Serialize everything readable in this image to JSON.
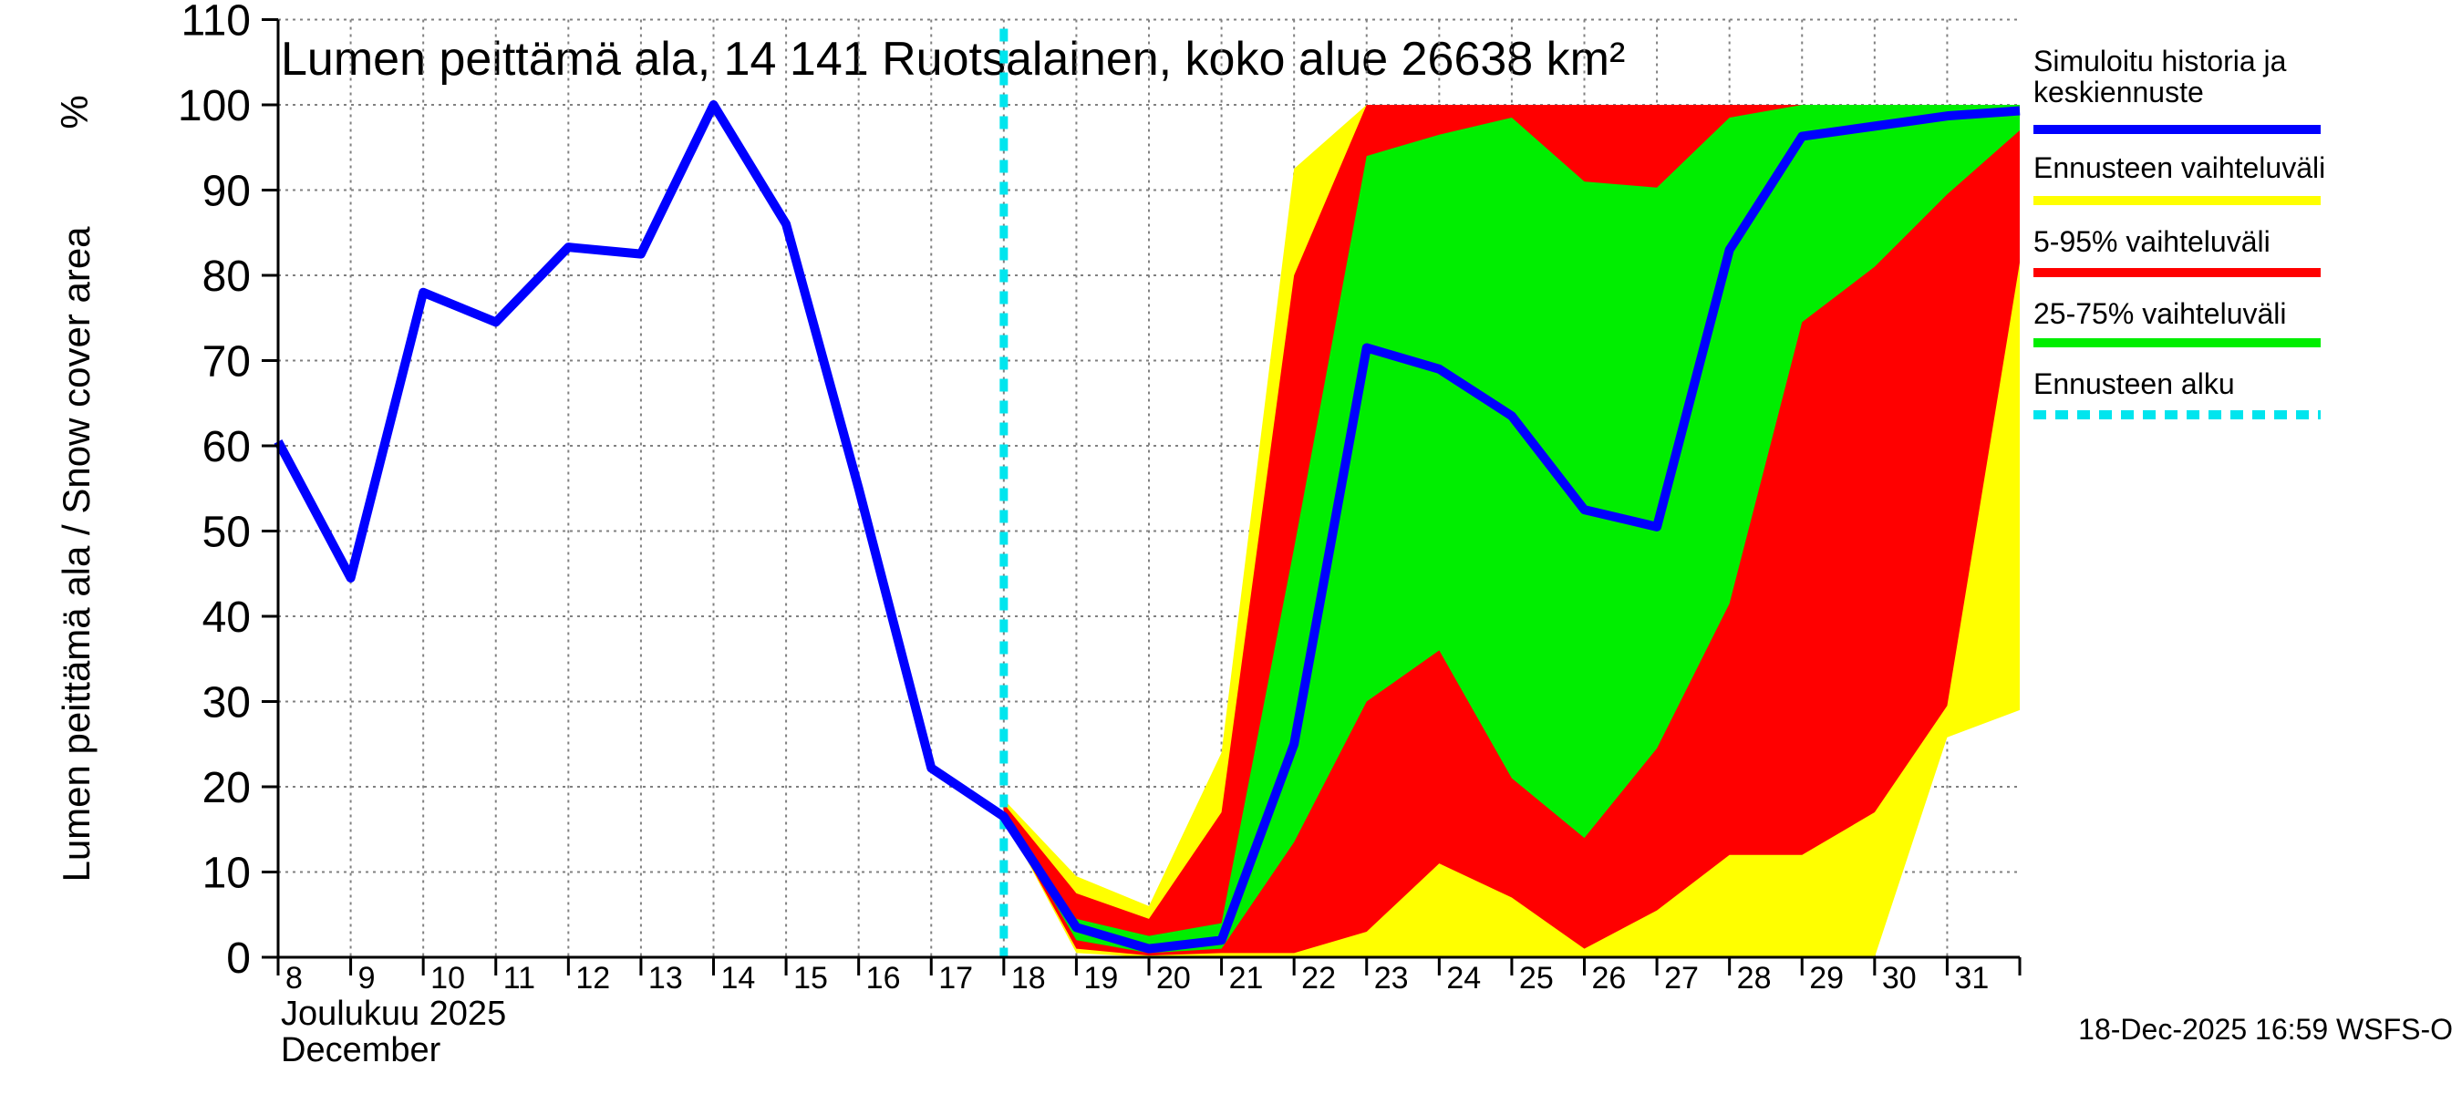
{
  "chart_data": {
    "type": "area",
    "title": "Lumen peittämä ala, 14 141 Ruotsalainen, koko alue 26638 km²",
    "ylabel": "Lumen peittämä ala / Snow cover area",
    "yunit": "%",
    "ylim": [
      0,
      110
    ],
    "yticks": [
      0,
      10,
      20,
      30,
      40,
      50,
      60,
      70,
      80,
      90,
      100,
      110
    ],
    "xlim": [
      8,
      32
    ],
    "x_day_labels": [
      "8",
      "9",
      "10",
      "11",
      "12",
      "13",
      "14",
      "15",
      "16",
      "17",
      "18",
      "19",
      "20",
      "21",
      "22",
      "23",
      "24",
      "25",
      "26",
      "27",
      "28",
      "29",
      "30",
      "31"
    ],
    "xlabel_month_fi": "Joulukuu  2025",
    "xlabel_month_en": "December",
    "grid": true,
    "forecast_start": 18,
    "timestamp": "18-Dec-2025 16:59 WSFS-O",
    "series": [
      {
        "name": "Simuloitu historia ja keskiennuste",
        "kind": "line",
        "color": "#0000ff",
        "x": [
          8,
          9,
          10,
          11,
          12,
          13,
          14,
          15,
          16,
          17,
          18,
          19,
          20,
          21,
          22,
          23,
          24,
          25,
          26,
          27,
          28,
          29,
          30,
          31,
          32
        ],
        "values": [
          60.5,
          44.5,
          78,
          74.5,
          83.3,
          82.5,
          100,
          86,
          55,
          22.2,
          16.5,
          3.5,
          1,
          2,
          25,
          71.5,
          69,
          63.5,
          52.5,
          50.5,
          83,
          96.3,
          97.5,
          98.7,
          99.3
        ]
      },
      {
        "name": "Ennusteen vaihteluväli",
        "kind": "band",
        "color": "#ffff00",
        "x": [
          18,
          19,
          20,
          21,
          22,
          23,
          24,
          25,
          26,
          27,
          28,
          29,
          30,
          31,
          32
        ],
        "lower": [
          16.5,
          0.5,
          0,
          0,
          0,
          0,
          0,
          0,
          0,
          0,
          0,
          0,
          0,
          25.8,
          29
        ],
        "upper": [
          18.5,
          9.5,
          6,
          24,
          92.5,
          100,
          100,
          100,
          100,
          100,
          100,
          100,
          100,
          100,
          100
        ]
      },
      {
        "name": "5-95% vaihteluväli",
        "kind": "band",
        "color": "#ff0000",
        "x": [
          18,
          19,
          20,
          21,
          22,
          23,
          24,
          25,
          26,
          27,
          28,
          29,
          30,
          31,
          32
        ],
        "lower": [
          16.5,
          1,
          0.2,
          0.5,
          0.5,
          3,
          11,
          7,
          1,
          5.5,
          12,
          12,
          17,
          29.5,
          81.5
        ],
        "upper": [
          18,
          7.5,
          4.5,
          17,
          80,
          100,
          100,
          100,
          100,
          100,
          100,
          100,
          100,
          100,
          100
        ]
      },
      {
        "name": "25-75% vaihteluväli",
        "kind": "band",
        "color": "#00ee00",
        "x": [
          18,
          19,
          20,
          21,
          22,
          23,
          24,
          25,
          26,
          27,
          28,
          29,
          30,
          31,
          32
        ],
        "lower": [
          16.5,
          2,
          0.5,
          1,
          13.5,
          30,
          36,
          21,
          14,
          24.5,
          41.5,
          74.5,
          81,
          89.5,
          97
        ],
        "upper": [
          17,
          4.5,
          2.5,
          4,
          48,
          94,
          96.5,
          98.5,
          91,
          90.3,
          98.5,
          100,
          100,
          100,
          100
        ]
      },
      {
        "name": "Ennusteen alku",
        "kind": "vline",
        "color": "#00e5ee",
        "x": [
          18
        ]
      }
    ]
  }
}
